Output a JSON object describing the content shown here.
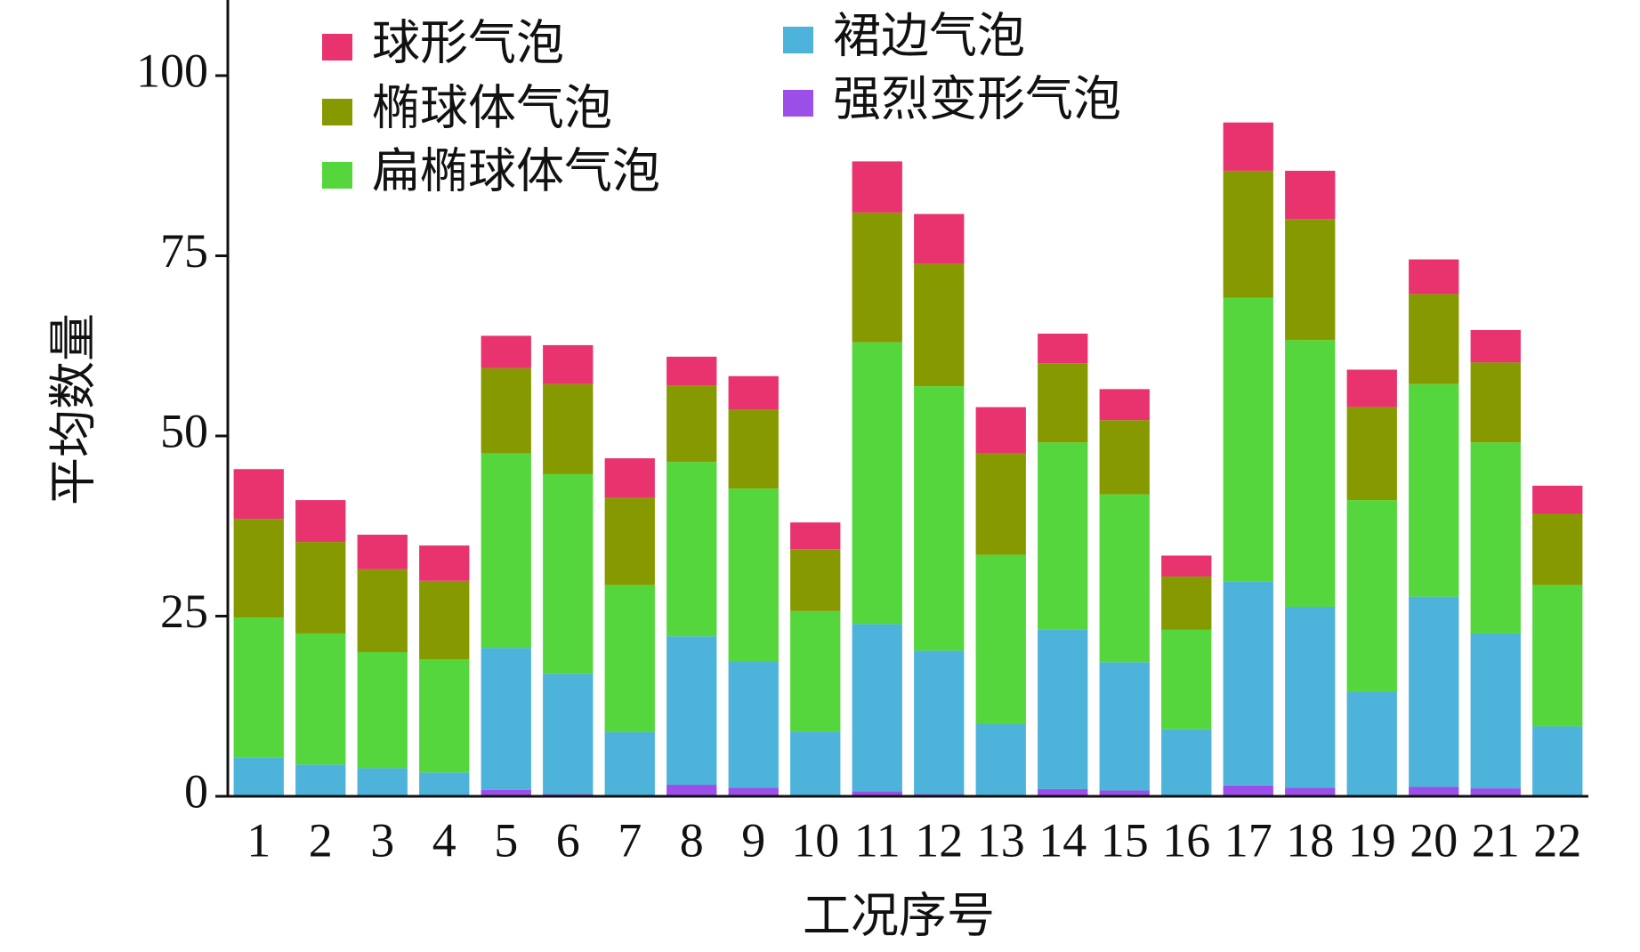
{
  "chart_data": {
    "type": "stacked_bar",
    "x_label": "工况序号",
    "y_label": "平均数量",
    "categories": [
      "1",
      "2",
      "3",
      "4",
      "5",
      "6",
      "7",
      "8",
      "9",
      "10",
      "11",
      "12",
      "13",
      "14",
      "15",
      "16",
      "17",
      "18",
      "19",
      "20",
      "21",
      "22"
    ],
    "series": [
      {
        "name": "强烈变形气泡",
        "color": "#9b4fe8",
        "values": [
          0,
          0,
          0,
          0,
          0.9,
          0.3,
          0,
          1.6,
          1.2,
          0,
          0.7,
          0.3,
          0,
          1.0,
          0.8,
          0,
          1.5,
          1.2,
          0,
          1.3,
          1.1,
          0
        ]
      },
      {
        "name": "裙边气泡",
        "color": "#4db3db",
        "values": [
          5.4,
          4.4,
          3.9,
          3.3,
          19.7,
          16.7,
          8.9,
          20.6,
          17.5,
          9.0,
          23.2,
          19.9,
          10.0,
          22.1,
          17.8,
          9.3,
          28.3,
          25.1,
          14.5,
          26.4,
          21.5,
          9.7
        ]
      },
      {
        "name": "扁椭球体气泡",
        "color": "#55d63c",
        "values": [
          19.4,
          18.2,
          16.1,
          15.7,
          27.0,
          27.7,
          20.4,
          24.2,
          24.0,
          16.7,
          39.1,
          36.7,
          23.5,
          26.0,
          23.3,
          13.8,
          39.4,
          37.0,
          26.6,
          29.5,
          26.5,
          19.6
        ]
      },
      {
        "name": "椭球体气泡",
        "color": "#869a00",
        "values": [
          13.7,
          12.7,
          11.5,
          10.9,
          11.8,
          12.5,
          12.1,
          10.6,
          11.0,
          8.6,
          18.0,
          17.0,
          14.1,
          11.0,
          10.3,
          7.4,
          17.6,
          16.8,
          12.9,
          12.5,
          11.1,
          9.9
        ]
      },
      {
        "name": "球形气泡",
        "color": "#e8336e",
        "values": [
          6.9,
          5.8,
          4.8,
          4.9,
          4.5,
          5.4,
          5.5,
          4.0,
          4.6,
          3.7,
          7.1,
          6.9,
          6.4,
          4.1,
          4.3,
          2.9,
          6.7,
          6.7,
          5.2,
          4.8,
          4.5,
          3.9
        ]
      }
    ],
    "ylim": [
      0,
      110
    ],
    "yticks": [
      0,
      25,
      50,
      75,
      100
    ]
  }
}
